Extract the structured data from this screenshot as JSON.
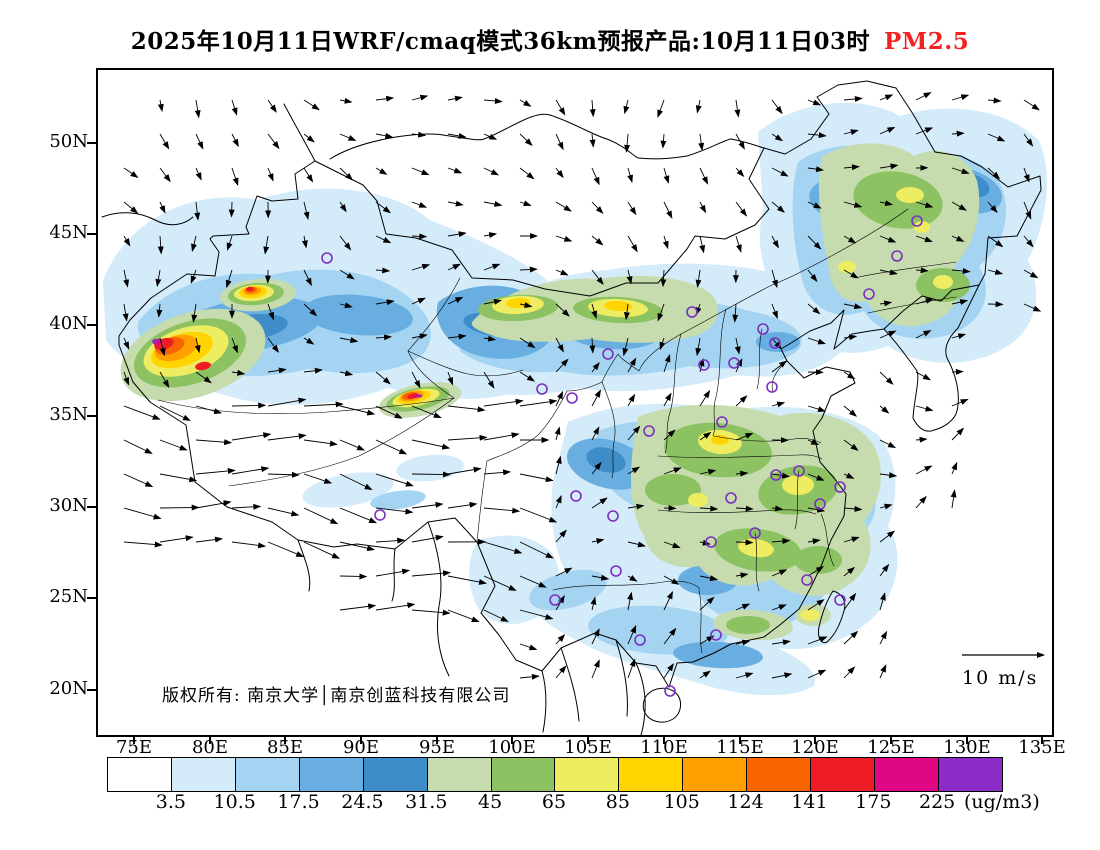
{
  "title": {
    "main": "2025年10月11日WRF/cmaq模式36km预报产品:10月11日03时",
    "pollutant": "PM2.5",
    "pollutant_color": "#F42121"
  },
  "axes": {
    "lat_ticks": [
      "50N",
      "45N",
      "40N",
      "35N",
      "30N",
      "25N",
      "20N"
    ],
    "lon_ticks": [
      "75E",
      "80E",
      "85E",
      "90E",
      "95E",
      "100E",
      "105E",
      "110E",
      "115E",
      "120E",
      "125E",
      "130E",
      "135E"
    ]
  },
  "map": {
    "copyright": "版权所有: 南京大学│南京创蓝科技有限公司",
    "wind_scale_label": "10 m/s",
    "station_marker_color": "#7B2FBE"
  },
  "colorbar": {
    "unit": "(ug/m3)",
    "tick_labels": [
      "3.5",
      "10.5",
      "17.5",
      "24.5",
      "31.5",
      "45",
      "65",
      "85",
      "105",
      "124",
      "141",
      "175",
      "225"
    ],
    "colors": [
      "#FFFFFF",
      "#D4EBFA",
      "#A4D4F2",
      "#68AEE0",
      "#3E8CC8",
      "#C6DCAE",
      "#8CC262",
      "#EEEC60",
      "#FFD400",
      "#FFA000",
      "#F86400",
      "#EE1C24",
      "#E00784",
      "#8C2BC8"
    ]
  }
}
